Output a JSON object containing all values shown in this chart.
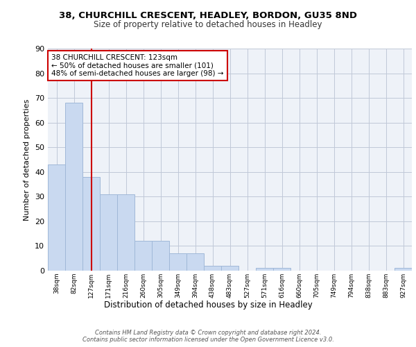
{
  "title1": "38, CHURCHILL CRESCENT, HEADLEY, BORDON, GU35 8ND",
  "title2": "Size of property relative to detached houses in Headley",
  "xlabel": "Distribution of detached houses by size in Headley",
  "ylabel": "Number of detached properties",
  "bin_labels": [
    "38sqm",
    "82sqm",
    "127sqm",
    "171sqm",
    "216sqm",
    "260sqm",
    "305sqm",
    "349sqm",
    "394sqm",
    "438sqm",
    "483sqm",
    "527sqm",
    "571sqm",
    "616sqm",
    "660sqm",
    "705sqm",
    "749sqm",
    "794sqm",
    "838sqm",
    "883sqm",
    "927sqm"
  ],
  "bar_heights": [
    43,
    68,
    38,
    31,
    31,
    12,
    12,
    7,
    7,
    2,
    2,
    0,
    1,
    1,
    0,
    0,
    0,
    0,
    0,
    0,
    1
  ],
  "bar_color": "#c9d9f0",
  "bar_edge_color": "#a0b8d8",
  "grid_color": "#c0c8d8",
  "background_color": "#eef2f8",
  "red_line_x": 2,
  "annotation_text": "38 CHURCHILL CRESCENT: 123sqm\n← 50% of detached houses are smaller (101)\n48% of semi-detached houses are larger (98) →",
  "annotation_box_color": "#ffffff",
  "annotation_box_edge": "#cc0000",
  "footnote": "Contains HM Land Registry data © Crown copyright and database right 2024.\nContains public sector information licensed under the Open Government Licence v3.0.",
  "ylim": [
    0,
    90
  ],
  "yticks": [
    0,
    10,
    20,
    30,
    40,
    50,
    60,
    70,
    80,
    90
  ]
}
